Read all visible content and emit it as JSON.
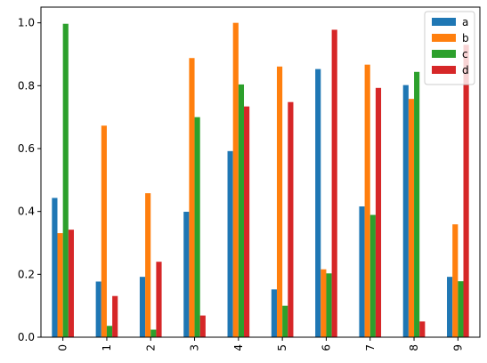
{
  "chart_data": {
    "type": "bar",
    "title": "",
    "xlabel": "",
    "ylabel": "",
    "categories": [
      "0",
      "1",
      "2",
      "3",
      "4",
      "5",
      "6",
      "7",
      "8",
      "9"
    ],
    "ylim": [
      0,
      1.05
    ],
    "yticks": [
      "0.0",
      "0.2",
      "0.4",
      "0.6",
      "0.8",
      "1.0"
    ],
    "ytick_values": [
      0.0,
      0.2,
      0.4,
      0.6,
      0.8,
      1.0
    ],
    "grid": false,
    "legend_position": "top-right",
    "series": [
      {
        "name": "a",
        "color": "#1f77b4",
        "values": [
          0.443,
          0.177,
          0.192,
          0.399,
          0.592,
          0.152,
          0.853,
          0.416,
          0.802,
          0.192
        ]
      },
      {
        "name": "b",
        "color": "#ff7f0e",
        "values": [
          0.331,
          0.673,
          0.458,
          0.888,
          1.0,
          0.861,
          0.216,
          0.867,
          0.758,
          0.359
        ]
      },
      {
        "name": "c",
        "color": "#2ca02c",
        "values": [
          0.997,
          0.036,
          0.024,
          0.7,
          0.804,
          0.1,
          0.203,
          0.389,
          0.844,
          0.178
        ]
      },
      {
        "name": "d",
        "color": "#d62728",
        "values": [
          0.342,
          0.131,
          0.24,
          0.069,
          0.734,
          0.748,
          0.978,
          0.793,
          0.05,
          0.93
        ]
      }
    ]
  }
}
